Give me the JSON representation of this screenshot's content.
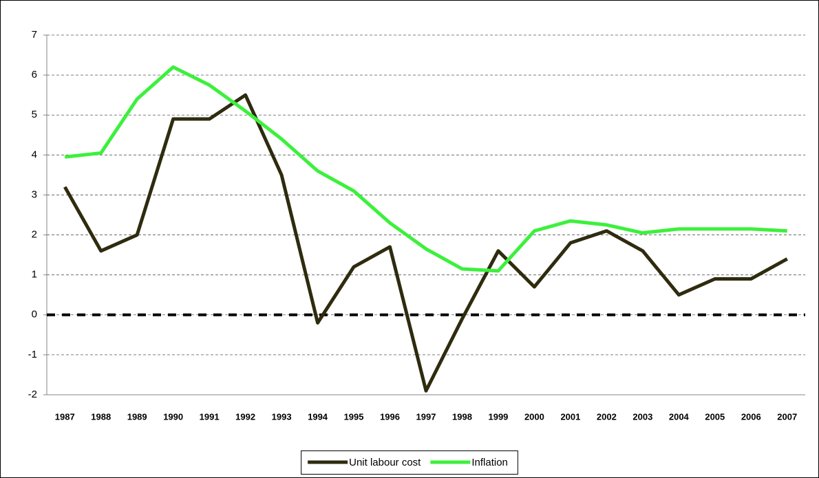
{
  "chart_data": {
    "type": "line",
    "categories": [
      "1987",
      "1988",
      "1989",
      "1990",
      "1991",
      "1992",
      "1993",
      "1994",
      "1995",
      "1996",
      "1997",
      "1998",
      "1999",
      "2000",
      "2001",
      "2002",
      "2003",
      "2004",
      "2005",
      "2006",
      "2007"
    ],
    "series": [
      {
        "name": "Unit labour cost",
        "color": "#2f2b0f",
        "values": [
          3.2,
          1.6,
          2.0,
          4.9,
          4.9,
          5.5,
          3.5,
          -0.2,
          1.2,
          1.7,
          -1.9,
          -0.1,
          1.6,
          0.7,
          1.8,
          2.1,
          1.6,
          0.5,
          0.9,
          0.9,
          1.4
        ]
      },
      {
        "name": "Inflation",
        "color": "#3cf03c",
        "values": [
          3.95,
          4.05,
          5.4,
          6.2,
          5.75,
          5.1,
          4.4,
          3.6,
          3.1,
          2.3,
          1.65,
          1.15,
          1.1,
          2.1,
          2.35,
          2.25,
          2.05,
          2.15,
          2.15,
          2.15,
          2.1
        ]
      }
    ],
    "ylim": [
      -2,
      7
    ],
    "yticks": [
      -2,
      -1,
      0,
      1,
      2,
      3,
      4,
      5,
      6,
      7
    ],
    "grid": true,
    "legend": "bottom"
  }
}
